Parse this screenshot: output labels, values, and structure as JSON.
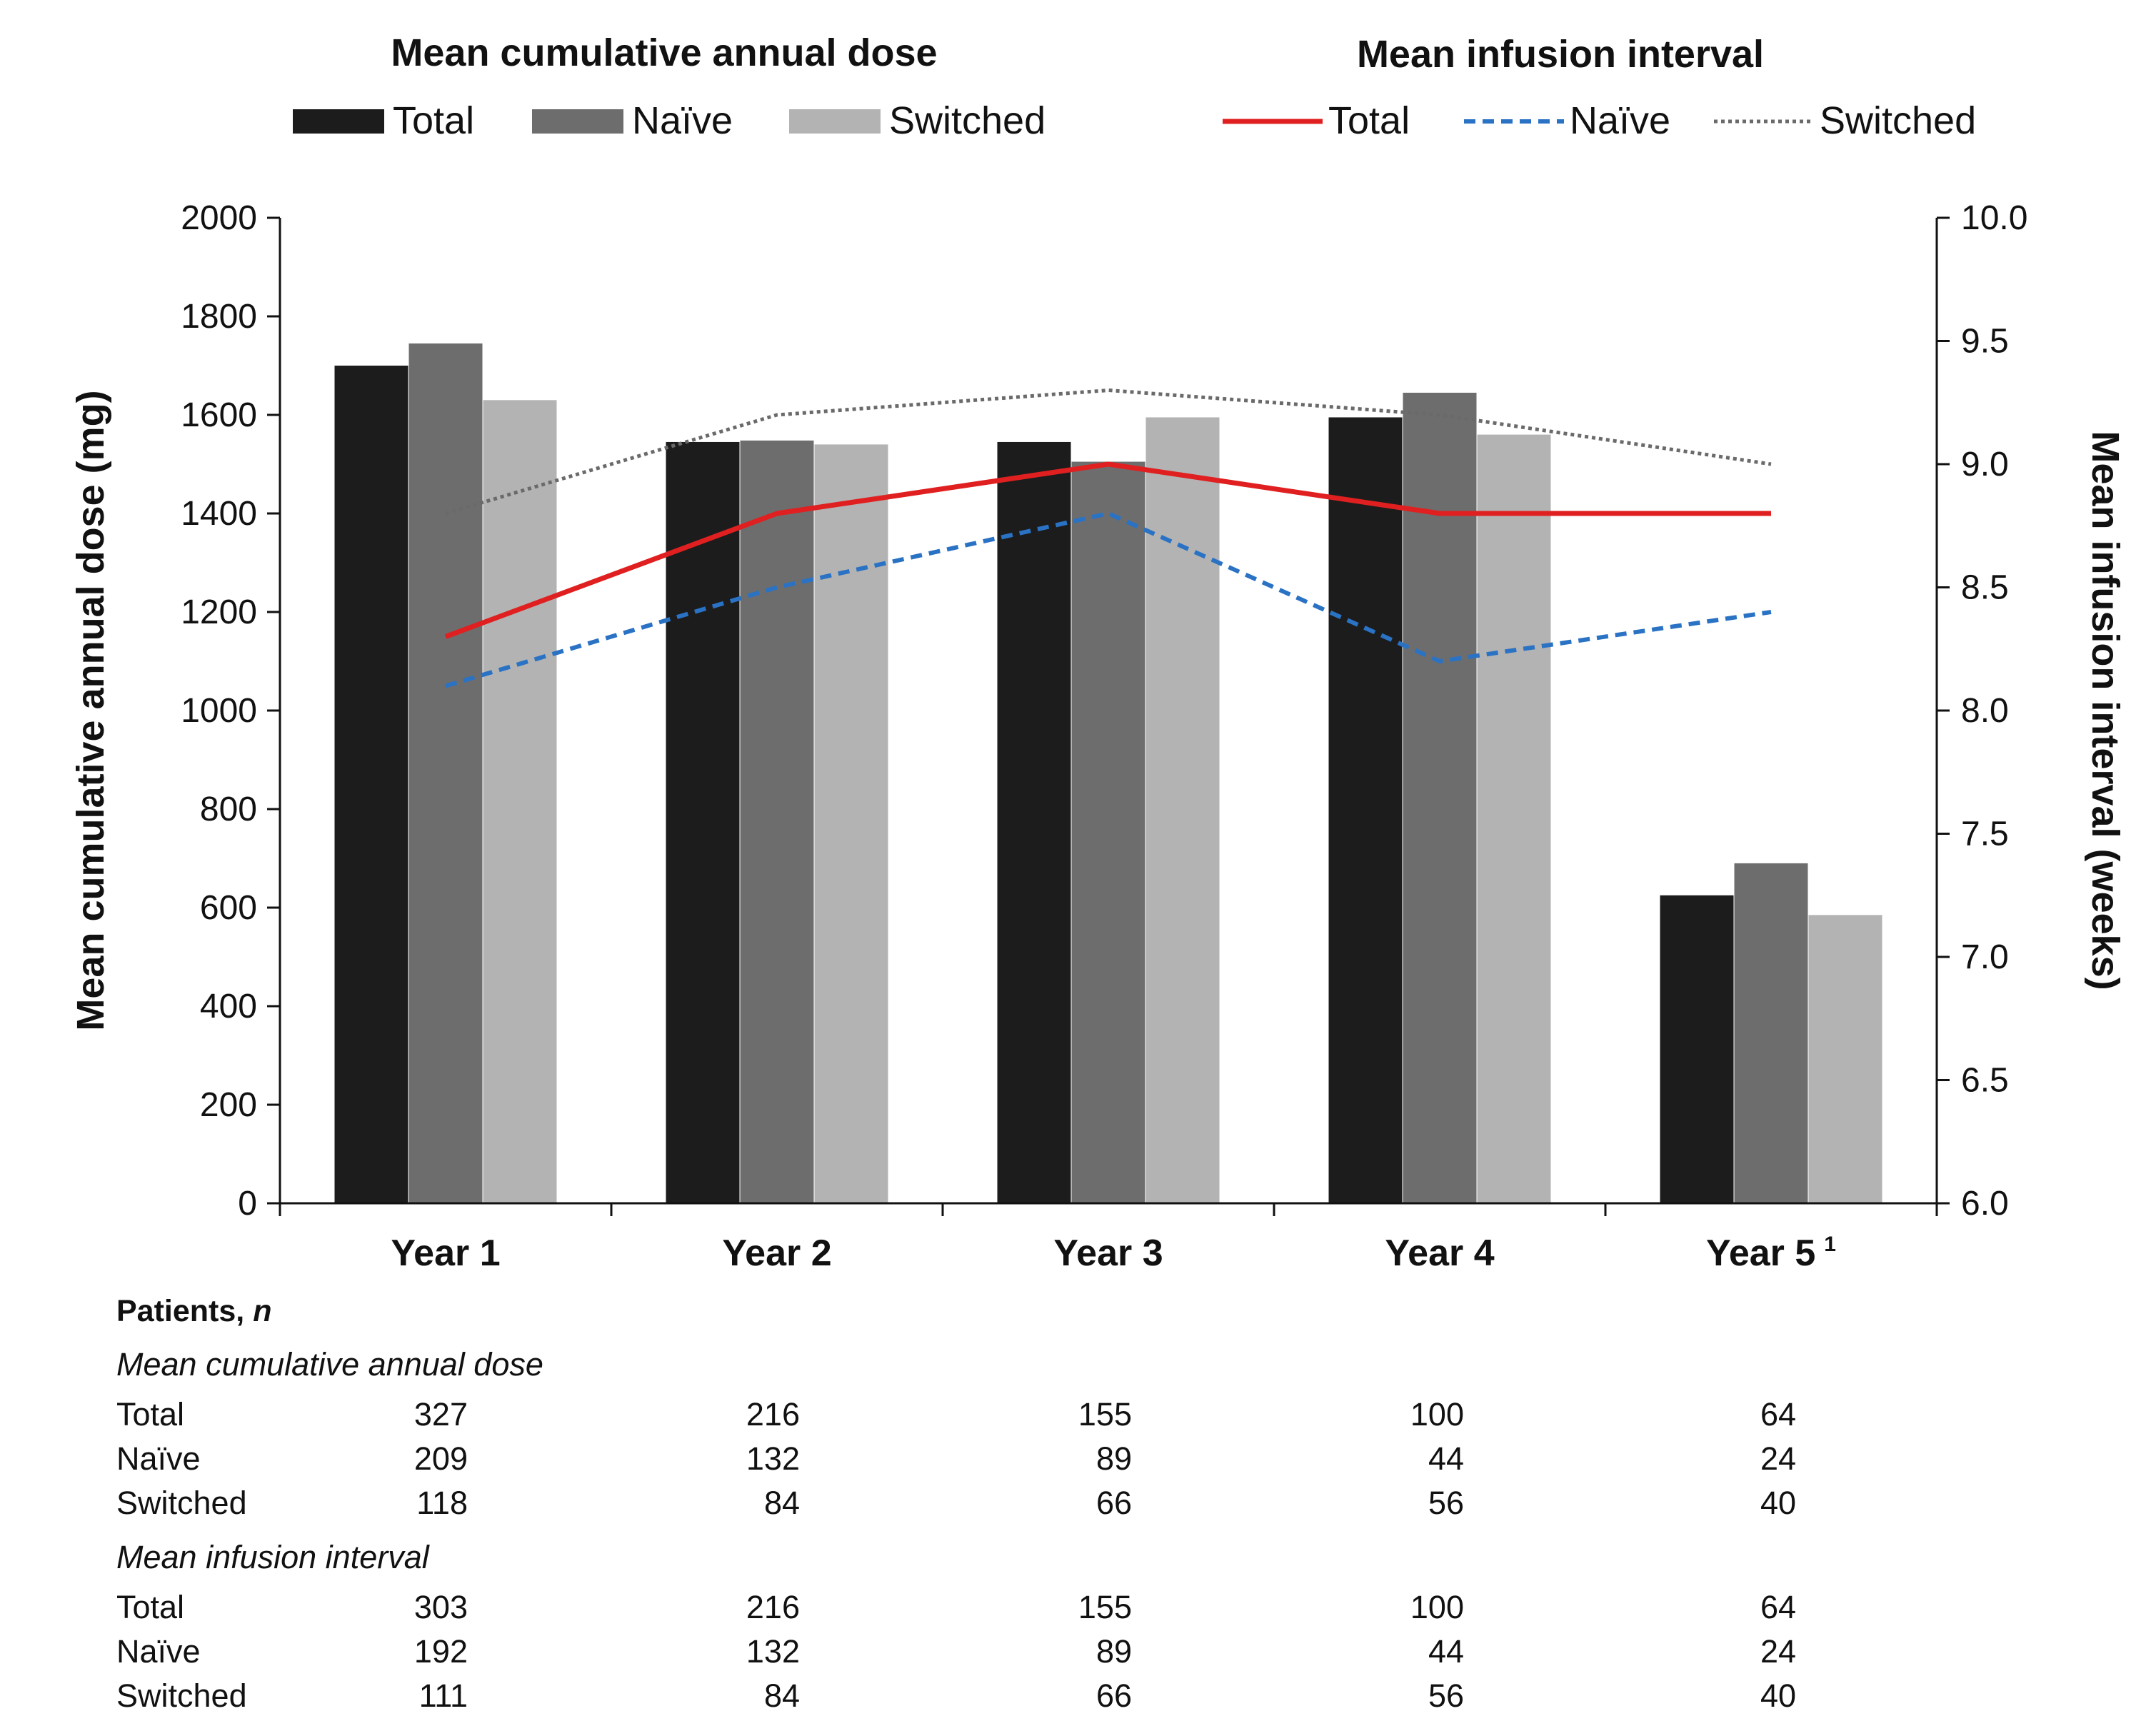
{
  "chart_data": {
    "type": "bar",
    "categories": [
      "Year 1",
      "Year 2",
      "Year 3",
      "Year 4",
      "Year 5"
    ],
    "footnote_marker": "1",
    "bar_legend_title": "Mean cumulative annual dose",
    "line_legend_title": "Mean infusion interval",
    "ylabel": "Mean cumulative annual dose (mg)",
    "ylim": [
      0,
      2000
    ],
    "yticks": [
      0,
      200,
      400,
      600,
      800,
      1000,
      1200,
      1400,
      1600,
      1800,
      2000
    ],
    "y2label": "Mean infusion interval (weeks)",
    "y2lim": [
      6.0,
      10.0
    ],
    "y2ticks": [
      "6.0",
      "6.5",
      "7.0",
      "7.5",
      "8.0",
      "8.5",
      "9.0",
      "9.5",
      "10.0"
    ],
    "bar_series": [
      {
        "name": "Total",
        "color": "#1c1c1c",
        "values": [
          1700,
          1545,
          1545,
          1595,
          625
        ]
      },
      {
        "name": "Naïve",
        "color": "#6d6d6d",
        "values": [
          1745,
          1548,
          1505,
          1645,
          690
        ]
      },
      {
        "name": "Switched",
        "color": "#b3b3b3",
        "values": [
          1630,
          1540,
          1595,
          1560,
          585
        ]
      }
    ],
    "line_series": [
      {
        "name": "Total",
        "color": "#e02020",
        "style": "solid",
        "values": [
          8.3,
          8.8,
          9.0,
          8.8,
          8.8
        ]
      },
      {
        "name": "Naïve",
        "color": "#2a72c4",
        "style": "dashed",
        "values": [
          8.1,
          8.5,
          8.8,
          8.2,
          8.4
        ]
      },
      {
        "name": "Switched",
        "color": "#6a6a6a",
        "style": "dotted",
        "values": [
          8.8,
          9.2,
          9.3,
          9.2,
          9.0
        ]
      }
    ],
    "grid": false
  },
  "patients_table": {
    "title_prefix": "Patients,",
    "title_var": "n",
    "sections": [
      {
        "title": "Mean cumulative annual dose",
        "rows": [
          {
            "label": "Total",
            "values": [
              "327",
              "216",
              "155",
              "100",
              "64"
            ]
          },
          {
            "label": "Naïve",
            "values": [
              "209",
              "132",
              "89",
              "44",
              "24"
            ]
          },
          {
            "label": "Switched",
            "values": [
              "118",
              "84",
              "66",
              "56",
              "40"
            ]
          }
        ]
      },
      {
        "title": "Mean infusion interval",
        "rows": [
          {
            "label": "Total",
            "values": [
              "303",
              "216",
              "155",
              "100",
              "64"
            ]
          },
          {
            "label": "Naïve",
            "values": [
              "192",
              "132",
              "89",
              "44",
              "24"
            ]
          },
          {
            "label": "Switched",
            "values": [
              "111",
              "84",
              "66",
              "56",
              "40"
            ]
          }
        ]
      }
    ]
  }
}
